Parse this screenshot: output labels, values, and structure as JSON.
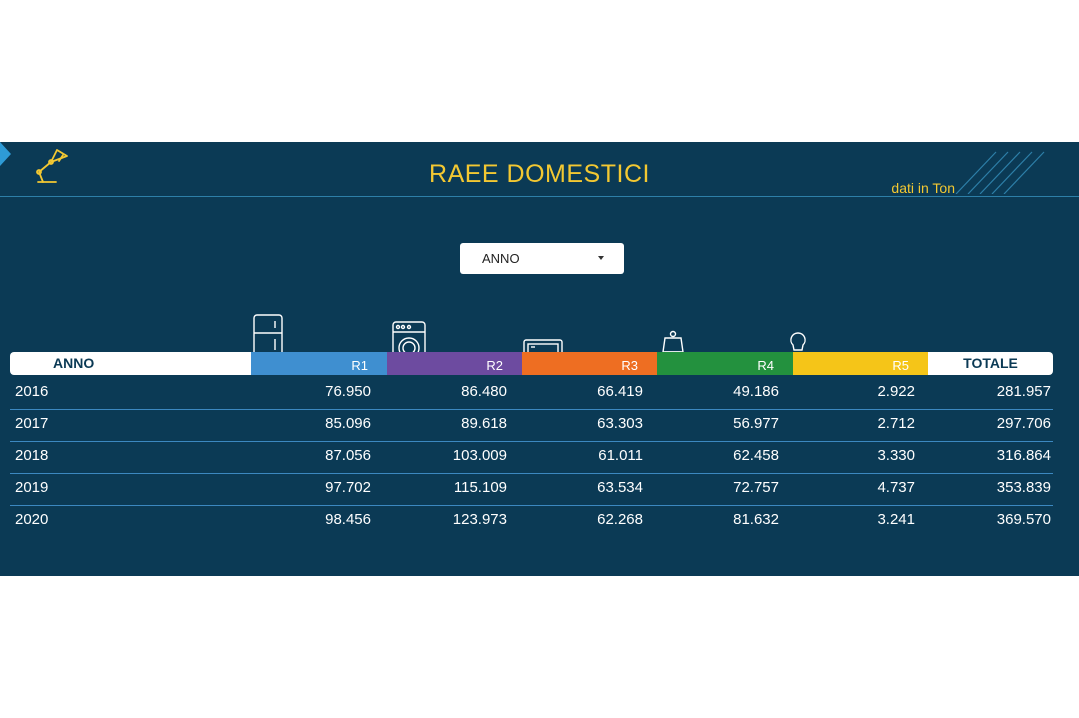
{
  "header": {
    "title": "RAEE DOMESTICI",
    "units": "dati in Ton",
    "logo_icon": "desk-lamp-icon"
  },
  "filter": {
    "selected": "ANNO",
    "icon": "caret-down-icon"
  },
  "colors": {
    "panel": "#0b3a55",
    "accent": "#f3c832",
    "r1": "#3f8fd0",
    "r2": "#6d4ba0",
    "r3": "#ee6e22",
    "r4": "#23913e",
    "r5": "#f5c518"
  },
  "table": {
    "columns": {
      "anno": "ANNO",
      "r1": "R1",
      "r2": "R2",
      "r3": "R3",
      "r4": "R4",
      "r5": "R5",
      "totale": "TOTALE"
    },
    "column_icons": {
      "r1": "fridge-icon",
      "r2": "washing-machine-icon",
      "r3": "tv-screen-icon",
      "r4": "small-appliance-icon",
      "r5": "light-bulb-icon"
    },
    "rows": [
      {
        "anno": "2016",
        "r1": "76.950",
        "r2": "86.480",
        "r3": "66.419",
        "r4": "49.186",
        "r5": "2.922",
        "totale": "281.957"
      },
      {
        "anno": "2017",
        "r1": "85.096",
        "r2": "89.618",
        "r3": "63.303",
        "r4": "56.977",
        "r5": "2.712",
        "totale": "297.706"
      },
      {
        "anno": "2018",
        "r1": "87.056",
        "r2": "103.009",
        "r3": "61.011",
        "r4": "62.458",
        "r5": "3.330",
        "totale": "316.864"
      },
      {
        "anno": "2019",
        "r1": "97.702",
        "r2": "115.109",
        "r3": "63.534",
        "r4": "72.757",
        "r5": "4.737",
        "totale": "353.839"
      },
      {
        "anno": "2020",
        "r1": "98.456",
        "r2": "123.973",
        "r3": "62.268",
        "r4": "81.632",
        "r5": "3.241",
        "totale": "369.570"
      }
    ]
  }
}
